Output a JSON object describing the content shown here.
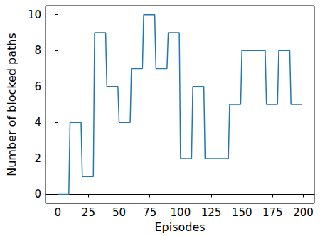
{
  "chart_data": {
    "type": "line",
    "x_label": "Episodes",
    "y_label": "Number of blocked paths",
    "x": [
      0,
      9,
      10,
      19,
      20,
      29,
      30,
      39,
      40,
      49,
      50,
      59,
      60,
      69,
      70,
      79,
      80,
      89,
      90,
      99,
      100,
      109,
      110,
      119,
      120,
      129,
      130,
      139,
      140,
      149,
      150,
      159,
      160,
      169,
      170,
      179,
      180,
      189,
      190,
      199
    ],
    "values": [
      0,
      0,
      4,
      4,
      1,
      1,
      9,
      9,
      6,
      6,
      4,
      4,
      7,
      7,
      10,
      10,
      7,
      7,
      9,
      9,
      2,
      2,
      6,
      6,
      2,
      2,
      2,
      2,
      5,
      5,
      8,
      8,
      8,
      8,
      5,
      5,
      8,
      8,
      5,
      5
    ],
    "color": "#1f77b4",
    "line_style": "solid",
    "xlim": [
      -10,
      209
    ],
    "xticks": [
      0,
      25,
      50,
      75,
      100,
      125,
      150,
      175,
      200
    ],
    "ylim": [
      -0.5,
      10.5
    ],
    "yticks": [
      0,
      2,
      4,
      6,
      8,
      10
    ],
    "grid": false
  }
}
